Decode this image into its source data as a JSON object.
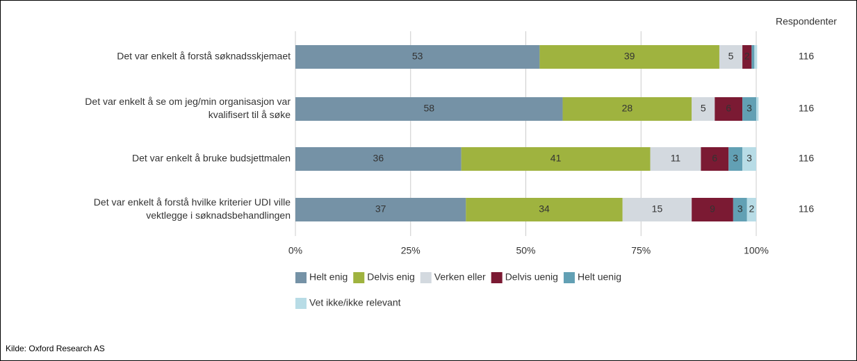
{
  "chart_data": {
    "type": "stacked_bar_horizontal",
    "categories": [
      [
        "Det var enkelt å forstå søknadsskjemaet"
      ],
      [
        "Det var enkelt å se om jeg/min organisasjon var",
        "kvalifisert til å søke"
      ],
      [
        "Det var enkelt å bruke budsjettmalen"
      ],
      [
        "Det var enkelt å forstå hvilke kriterier UDI ville",
        "vektlegge i søknadsbehandlingen"
      ]
    ],
    "series": [
      {
        "name": "Helt enig",
        "color": "#7592a6",
        "values": [
          53,
          58,
          36,
          37
        ],
        "value_labels": [
          "53",
          "58",
          "36",
          "37"
        ]
      },
      {
        "name": "Delvis enig",
        "color": "#9fb33f",
        "values": [
          39,
          28,
          41,
          34
        ],
        "value_labels": [
          "39",
          "28",
          "41",
          "34"
        ]
      },
      {
        "name": "Verken eller",
        "color": "#d3d9df",
        "values": [
          5,
          5,
          11,
          15
        ],
        "value_labels": [
          "5",
          "5",
          "11",
          "15"
        ]
      },
      {
        "name": "Delvis uenig",
        "color": "#7b1a33",
        "values": [
          2,
          6,
          6,
          9
        ],
        "value_labels": [
          "2",
          "6",
          "6",
          "9"
        ]
      },
      {
        "name": "Helt uenig",
        "color": "#62a0b4",
        "values": [
          0.6,
          3,
          3,
          3
        ],
        "value_labels": [
          null,
          "3",
          "3",
          "3"
        ]
      },
      {
        "name": "Vet ikke/ikke relevant",
        "color": "#b8dce6",
        "values": [
          0.6,
          0.5,
          3,
          2
        ],
        "value_labels": [
          null,
          null,
          "3",
          "2"
        ]
      }
    ],
    "xlim": [
      0,
      100
    ],
    "xticks": [
      {
        "value": 0,
        "label": "0%"
      },
      {
        "value": 25,
        "label": "25%"
      },
      {
        "value": 50,
        "label": "50%"
      },
      {
        "value": 75,
        "label": "75%"
      },
      {
        "value": 100,
        "label": "100%"
      }
    ],
    "grid": true,
    "respondents": {
      "title": "Respondenter",
      "values": [
        116,
        116,
        116,
        116
      ]
    },
    "source": "Kilde: Oxford Research AS"
  }
}
